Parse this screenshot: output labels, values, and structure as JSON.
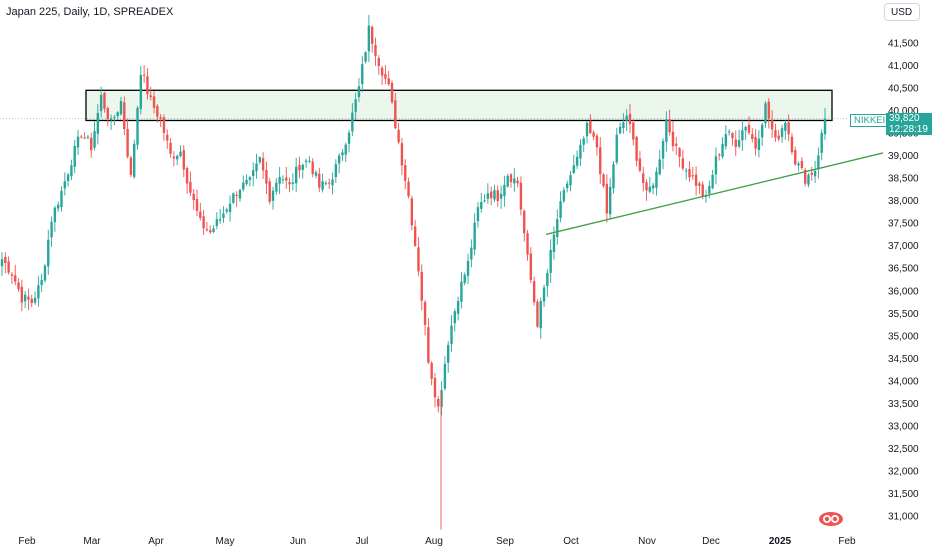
{
  "header": {
    "title": "Japan 225, Daily, 1D, SPREADEX",
    "currency": "USD"
  },
  "chart_data": {
    "type": "candlestick",
    "instrument": "Japan 225",
    "symbol": "NIKKEI",
    "last_price": "39,820",
    "countdown": "12:28:19",
    "y_ticks": [
      31000,
      31500,
      32000,
      32500,
      33000,
      33500,
      34000,
      34500,
      35000,
      35500,
      36000,
      36500,
      37000,
      37500,
      38000,
      38500,
      39000,
      39500,
      40000,
      40500,
      41000,
      41500
    ],
    "y_tick_labels": [
      "31,000",
      "31,500",
      "32,000",
      "32,500",
      "33,000",
      "33,500",
      "34,000",
      "34,500",
      "35,000",
      "35,500",
      "36,000",
      "36,500",
      "37,000",
      "37,500",
      "38,000",
      "38,500",
      "39,000",
      "39,500",
      "40,000",
      "40,500",
      "41,000",
      "41,500"
    ],
    "ylim": [
      30700,
      42800
    ],
    "x_labels": [
      "Feb",
      "Mar",
      "Apr",
      "May",
      "Jun",
      "Jul",
      "Aug",
      "Sep",
      "Oct",
      "Nov",
      "Dec",
      "2025",
      "Feb"
    ],
    "colors": {
      "up": "#26a69a",
      "down": "#ef5350",
      "zone_fill": "#e8f5e9",
      "zone_border": "#000000",
      "trendline": "#43a047"
    },
    "resistance_zone": {
      "from": 39780,
      "to": 40450
    },
    "trendline": {
      "from_price": 37250,
      "to_price": 39060
    },
    "pivots": [
      36700,
      36400,
      35850,
      35750,
      36200,
      37600,
      38200,
      38900,
      39500,
      39200,
      40300,
      39700,
      40200,
      38500,
      40900,
      40200,
      39800,
      39000,
      39100,
      38200,
      37500,
      37300,
      37600,
      38000,
      38300,
      38400,
      38900,
      38100,
      38600,
      38300,
      38800,
      38900,
      38300,
      38400,
      38900,
      39600,
      40500,
      41800,
      41100,
      40500,
      39300,
      38100,
      36500,
      34500,
      33400,
      34900,
      35900,
      36600,
      37800,
      38200,
      38100,
      38600,
      38400,
      36700,
      35300,
      36400,
      37600,
      38400,
      38900,
      39600,
      39200,
      37700,
      39400,
      39900,
      39000,
      38100,
      38600,
      39800,
      39100,
      38700,
      38400,
      38000,
      38900,
      39500,
      39300,
      39700,
      39200,
      40100,
      39300,
      39800,
      38900,
      38500,
      38700,
      39820
    ]
  }
}
